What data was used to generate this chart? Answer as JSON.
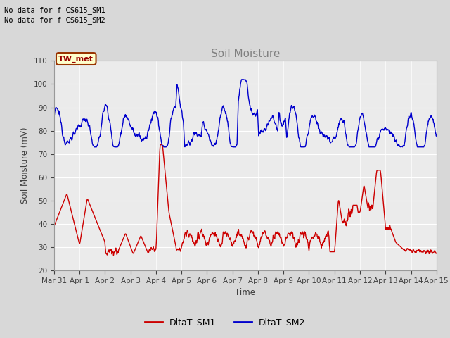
{
  "title": "Soil Moisture",
  "ylabel": "Soil Moisture (mV)",
  "xlabel": "Time",
  "no_data_text1": "No data for f CS615_SM1",
  "no_data_text2": "No data for f CS615_SM2",
  "tw_met_label": "TW_met",
  "legend_sm1": "DltaT_SM1",
  "legend_sm2": "DltaT_SM2",
  "ylim": [
    20,
    110
  ],
  "yticks": [
    20,
    30,
    40,
    50,
    60,
    70,
    80,
    90,
    100,
    110
  ],
  "xtick_labels": [
    "Mar 31",
    "Apr 1",
    "Apr 2",
    "Apr 3",
    "Apr 4",
    "Apr 5",
    "Apr 6",
    "Apr 7",
    "Apr 8",
    "Apr 9",
    "Apr 10",
    "Apr 11",
    "Apr 12",
    "Apr 13",
    "Apr 14",
    "Apr 15"
  ],
  "sm1_color": "#cc0000",
  "sm2_color": "#0000cc",
  "background_color": "#d8d8d8",
  "plot_bg_color": "#ebebeb",
  "tw_met_bg": "#ffffcc",
  "tw_met_border": "#993300",
  "tw_met_text_color": "#990000",
  "title_color": "#808080",
  "no_data_color": "#000000"
}
